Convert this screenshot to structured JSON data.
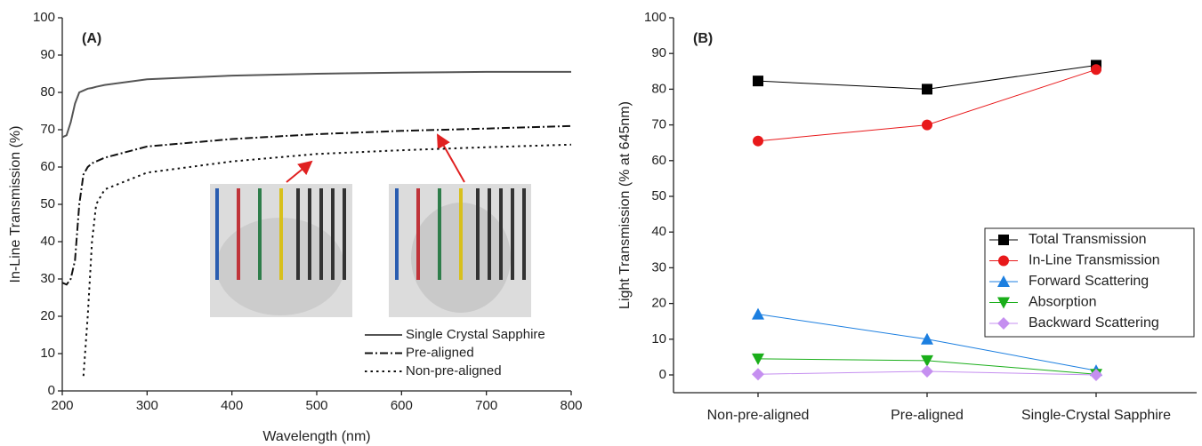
{
  "chart_data": [
    {
      "type": "line",
      "annotation": "(A)",
      "xlabel": "Wavelength (nm)",
      "ylabel": "In-Line Transmission (%)",
      "x": [
        200,
        205,
        210,
        215,
        220,
        225,
        230,
        235,
        240,
        250,
        300,
        400,
        500,
        600,
        700,
        800
      ],
      "xlim": [
        200,
        800
      ],
      "xticks": [
        200,
        300,
        400,
        500,
        600,
        700,
        800
      ],
      "ylim": [
        0,
        100
      ],
      "yticks": [
        0,
        10,
        20,
        30,
        40,
        50,
        60,
        70,
        80,
        90,
        100
      ],
      "legend": "lower-right",
      "series": [
        {
          "name": "Single Crystal Sapphire",
          "color": "#555555",
          "dash": "solid",
          "values": [
            68,
            68.5,
            72,
            77,
            80,
            80.5,
            81,
            81.2,
            81.5,
            82,
            83.5,
            84.5,
            85,
            85.3,
            85.5,
            85.5
          ]
        },
        {
          "name": "Pre-aligned",
          "color": "#111111",
          "dash": "dash-dot",
          "values": [
            29,
            28.5,
            30,
            35,
            50,
            58,
            60,
            61,
            61.5,
            62.5,
            65.5,
            67.5,
            68.8,
            69.7,
            70.3,
            71
          ]
        },
        {
          "name": "Non-pre-aligned",
          "color": "#111111",
          "dash": "dot",
          "values": [
            null,
            null,
            null,
            null,
            null,
            4,
            20,
            40,
            50,
            54,
            58.5,
            61.5,
            63.5,
            64.5,
            65.3,
            66
          ]
        }
      ]
    },
    {
      "type": "line-marker",
      "annotation": "(B)",
      "ylabel": "Light Transmission (% at 645nm)",
      "categories": [
        "Non-pre-aligned",
        "Pre-aligned",
        "Single-Crystal Sapphire"
      ],
      "ylim": [
        -5,
        100
      ],
      "yticks": [
        0,
        10,
        20,
        30,
        40,
        50,
        60,
        70,
        80,
        90,
        100
      ],
      "legend": "right",
      "series": [
        {
          "name": "Total Transmission",
          "color": "#000000",
          "marker": "square",
          "values": [
            82.3,
            80,
            86.7
          ]
        },
        {
          "name": "In-Line Transmission",
          "color": "#e8191b",
          "marker": "circle",
          "values": [
            65.5,
            70,
            85.5
          ]
        },
        {
          "name": "Forward Scattering",
          "color": "#1c7fe0",
          "marker": "triangle-up",
          "values": [
            17,
            10,
            1.2
          ]
        },
        {
          "name": "Absorption",
          "color": "#1aae1a",
          "marker": "triangle-down",
          "values": [
            4.5,
            4,
            0.2
          ]
        },
        {
          "name": "Backward Scattering",
          "color": "#c58ff0",
          "marker": "diamond",
          "values": [
            0.2,
            1,
            0
          ]
        }
      ]
    }
  ]
}
